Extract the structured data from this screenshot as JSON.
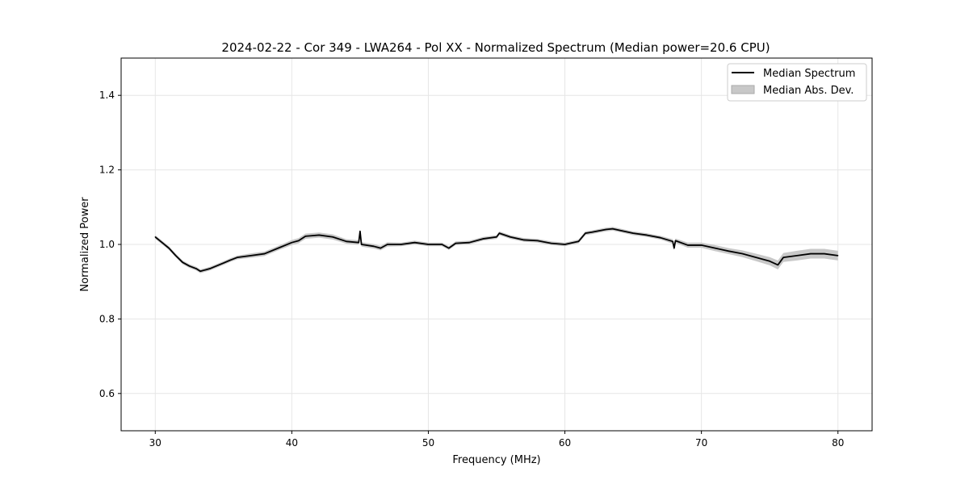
{
  "chart_data": {
    "type": "line",
    "title": "2024-02-22 - Cor 349 - LWA264 - Pol XX - Normalized Spectrum (Median power=20.6 CPU)",
    "xlabel": "Frequency (MHz)",
    "ylabel": "Normalized Power",
    "xlim": [
      27.5,
      82.5
    ],
    "ylim": [
      0.5,
      1.5
    ],
    "xticks": [
      30,
      40,
      50,
      60,
      70,
      80
    ],
    "xtick_labels": [
      "30",
      "40",
      "50",
      "60",
      "70",
      "80"
    ],
    "yticks": [
      0.6,
      0.8,
      1.0,
      1.2,
      1.4
    ],
    "ytick_labels": [
      "0.6",
      "0.8",
      "1.0",
      "1.2",
      "1.4"
    ],
    "grid": true,
    "legend": {
      "placement": "top-right",
      "entries": [
        "Median Spectrum",
        "Median Abs. Dev."
      ]
    },
    "series": [
      {
        "name": "Median Spectrum",
        "color": "#000000",
        "x": [
          30,
          30.5,
          31,
          31.5,
          32,
          32.5,
          33,
          33.3,
          34,
          35,
          35.5,
          36,
          37,
          38,
          39,
          40,
          40.5,
          41,
          42,
          43,
          44,
          44.9,
          45.0,
          45.1,
          46,
          46.5,
          47,
          48,
          49,
          50,
          51,
          51.5,
          52,
          53,
          54,
          55,
          55.2,
          56,
          57,
          58,
          59,
          60,
          61,
          61.5,
          62,
          63,
          63.5,
          64,
          65,
          66,
          67,
          67.9,
          68,
          68.1,
          69,
          70,
          71,
          72,
          73,
          74,
          75,
          75.6,
          76,
          77,
          78,
          79,
          80
        ],
        "y": [
          1.02,
          1.005,
          0.99,
          0.97,
          0.952,
          0.942,
          0.935,
          0.928,
          0.935,
          0.95,
          0.958,
          0.965,
          0.97,
          0.975,
          0.99,
          1.005,
          1.01,
          1.022,
          1.025,
          1.02,
          1.008,
          1.005,
          1.035,
          1.0,
          0.995,
          0.99,
          1.0,
          1.0,
          1.005,
          1.0,
          1.0,
          0.99,
          1.003,
          1.005,
          1.015,
          1.02,
          1.03,
          1.02,
          1.012,
          1.01,
          1.003,
          1.0,
          1.008,
          1.03,
          1.033,
          1.04,
          1.042,
          1.038,
          1.03,
          1.025,
          1.018,
          1.008,
          0.99,
          1.01,
          0.998,
          0.998,
          0.99,
          0.982,
          0.975,
          0.965,
          0.955,
          0.945,
          0.965,
          0.97,
          0.975,
          0.975,
          0.97
        ]
      },
      {
        "name": "Median Abs. Dev.",
        "color": "#c8c8c8",
        "mad": [
          0.005,
          0.005,
          0.005,
          0.005,
          0.005,
          0.005,
          0.005,
          0.005,
          0.005,
          0.005,
          0.005,
          0.005,
          0.006,
          0.006,
          0.006,
          0.007,
          0.007,
          0.007,
          0.007,
          0.007,
          0.006,
          0.006,
          0.006,
          0.006,
          0.006,
          0.006,
          0.006,
          0.005,
          0.005,
          0.005,
          0.005,
          0.005,
          0.005,
          0.005,
          0.005,
          0.005,
          0.005,
          0.005,
          0.005,
          0.005,
          0.005,
          0.005,
          0.005,
          0.005,
          0.005,
          0.005,
          0.005,
          0.005,
          0.005,
          0.005,
          0.005,
          0.006,
          0.006,
          0.006,
          0.007,
          0.007,
          0.008,
          0.008,
          0.009,
          0.01,
          0.011,
          0.012,
          0.012,
          0.013,
          0.013,
          0.013,
          0.013
        ]
      }
    ]
  }
}
